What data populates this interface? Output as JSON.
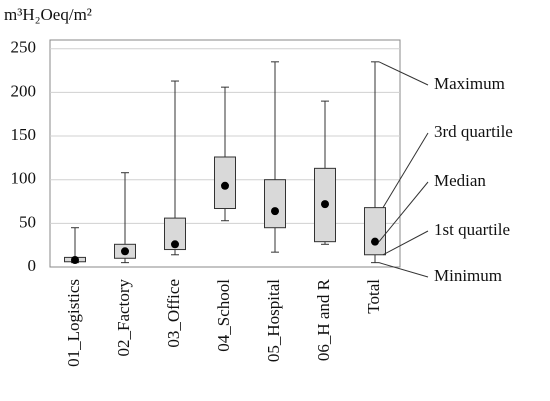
{
  "chart_data": {
    "type": "box",
    "title": "m³H₂Oeq/m²",
    "categories": [
      "01_Logistics",
      "02_Factory",
      "03_Office",
      "04_School",
      "05_Hospital",
      "06_H and R",
      "Total"
    ],
    "boxes": [
      {
        "min": 5,
        "q1": 6,
        "median": 8,
        "q3": 11,
        "max": 45
      },
      {
        "min": 5,
        "q1": 10,
        "median": 18,
        "q3": 26,
        "max": 108
      },
      {
        "min": 14,
        "q1": 20,
        "median": 26,
        "q3": 56,
        "max": 213
      },
      {
        "min": 53,
        "q1": 67,
        "median": 93,
        "q3": 126,
        "max": 206
      },
      {
        "min": 17,
        "q1": 45,
        "median": 64,
        "q3": 100,
        "max": 235
      },
      {
        "min": 26,
        "q1": 29,
        "median": 72,
        "q3": 113,
        "max": 190
      },
      {
        "min": 5,
        "q1": 14,
        "median": 29,
        "q3": 68,
        "max": 235
      }
    ],
    "annotations": {
      "max": "Maximum",
      "q3": "3rd quartile",
      "median": "Median",
      "q1": "1st quartile",
      "min": "Minimum"
    },
    "ylim": [
      0,
      260
    ],
    "yticks": [
      0,
      50,
      100,
      150,
      200,
      250
    ],
    "grid": true,
    "color": "#d9d9d9"
  }
}
